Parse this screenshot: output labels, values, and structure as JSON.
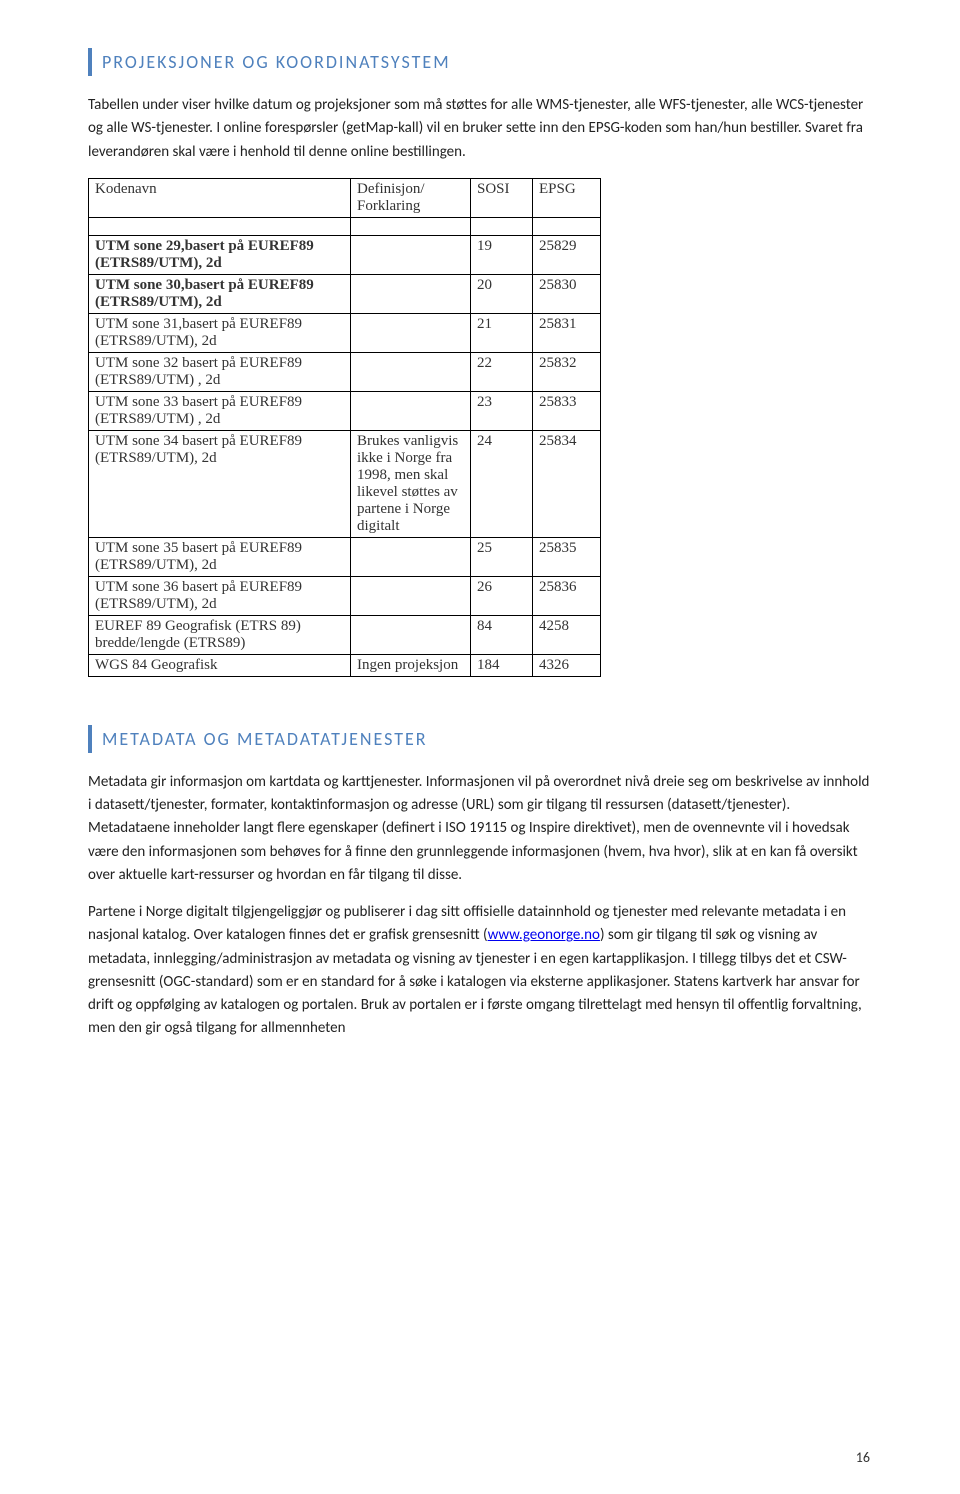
{
  "section1": {
    "title": "PROJEKSJONER OG KOORDINATSYSTEM",
    "para": "Tabellen under viser hvilke datum og projeksjoner som må støttes for alle WMS-tjenester, alle WFS-tjenester, alle WCS-tjenester og alle WS-tjenester. I online forespørsler (getMap-kall) vil en bruker sette inn den EPSG-koden som han/hun bestiller. Svaret fra leverandøren skal være i henhold til denne online bestillingen."
  },
  "table": {
    "headers": {
      "name": "Kodenavn",
      "def": "Definisjon/ Forklaring",
      "sosi": "SOSI",
      "epsg": "EPSG"
    },
    "rows": [
      {
        "name": "UTM sone 29,basert på  EUREF89 (ETRS89/UTM), 2d",
        "bold": true,
        "def": "",
        "sosi": "19",
        "epsg": "25829"
      },
      {
        "name": "UTM sone 30,basert på  EUREF89 (ETRS89/UTM), 2d",
        "bold": true,
        "def": "",
        "sosi": "20",
        "epsg": "25830"
      },
      {
        "name": "UTM sone 31,basert på  EUREF89 (ETRS89/UTM), 2d",
        "bold": false,
        "def": "",
        "sosi": "21",
        "epsg": "25831"
      },
      {
        "name": "UTM sone 32 basert på EUREF89 (ETRS89/UTM) , 2d",
        "bold": false,
        "def": "",
        "sosi": "22",
        "epsg": "25832"
      },
      {
        "name": "UTM sone 33 basert på EUREF89 (ETRS89/UTM) , 2d",
        "bold": false,
        "def": "",
        "sosi": "23",
        "epsg": "25833"
      },
      {
        "name": "UTM sone 34 basert på EUREF89 (ETRS89/UTM), 2d",
        "bold": false,
        "def": "Brukes vanligvis ikke i Norge fra 1998, men skal likevel støttes av partene i Norge digitalt",
        "sosi": "24",
        "epsg": "25834"
      },
      {
        "name": "UTM sone 35 basert på EUREF89 (ETRS89/UTM), 2d",
        "bold": false,
        "def": "",
        "sosi": "25",
        "epsg": "25835"
      },
      {
        "name": "UTM sone 36 basert på EUREF89 (ETRS89/UTM), 2d",
        "bold": false,
        "def": "",
        "sosi": "26",
        "epsg": "25836"
      },
      {
        "name": "EUREF 89 Geografisk (ETRS 89) bredde/lengde    (ETRS89)",
        "bold": false,
        "def": "",
        "sosi": "84",
        "epsg": "4258"
      },
      {
        "name": "WGS 84 Geografisk",
        "bold": false,
        "def": "Ingen projeksjon",
        "sosi": "184",
        "epsg": "4326"
      }
    ]
  },
  "section2": {
    "title": "METADATA OG METADATATJENESTER",
    "para1": "Metadata gir informasjon om kartdata og karttjenester. Informasjonen vil på overordnet nivå dreie seg om beskrivelse av innhold i datasett/tjenester, formater, kontaktinformasjon og adresse (URL) som gir tilgang til ressursen (datasett/tjenester). Metadataene inneholder langt flere egenskaper (definert i ISO 19115 og Inspire direktivet), men de ovennevnte vil i hovedsak være den informasjonen som behøves for å finne den grunnleggende informasjonen (hvem, hva hvor), slik at en kan få oversikt over aktuelle kart-ressurser og hvordan en får tilgang til disse.",
    "para2_pre": "Partene i Norge digitalt tilgjengeliggjør og publiserer i dag sitt offisielle datainnhold og tjenester med relevante metadata i en nasjonal katalog. Over katalogen finnes det er grafisk grensesnitt (",
    "para2_link": "www.geonorge.no",
    "para2_post": ") som gir tilgang til søk og visning av metadata, innlegging/administrasjon av metadata og visning av tjenester i en egen kartapplikasjon. I tillegg tilbys det et CSW-grensesnitt (OGC-standard) som er en standard for å søke i katalogen via eksterne applikasjoner. Statens kartverk har ansvar for drift og oppfølging av katalogen og portalen. Bruk av portalen er i første omgang tilrettelagt med hensyn til offentlig forvaltning, men den gir også tilgang for allmennheten"
  },
  "page_number": "16"
}
